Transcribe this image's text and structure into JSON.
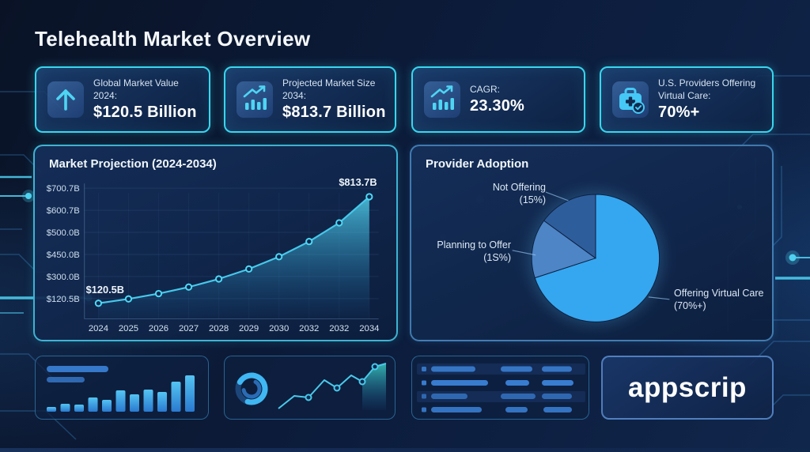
{
  "title": "Telehealth Market Overview",
  "brand": {
    "logo_text": "appscrip"
  },
  "colors": {
    "accent_cyan": "#3fd9f2",
    "accent_blue": "#35a7f0",
    "card_border": "#38d6ee",
    "pie_offering": "#35a7f0",
    "pie_planning": "#4d85c6",
    "pie_not_offering": "#2e5d9c"
  },
  "stat_cards": [
    {
      "label": "Global Market Value 2024:",
      "value": "$120.5 Billion",
      "icon": "arrow-up-icon"
    },
    {
      "label": "Projected Market Size 2034:",
      "value": "$813.7 Billion",
      "icon": "bar-chart-trend-icon"
    },
    {
      "label": "CAGR:",
      "value": "23.30%",
      "icon": "bar-chart-trend-icon"
    },
    {
      "label": "U.S. Providers Offering Virtual Care:",
      "value": "70%+",
      "icon": "medical-bag-check-icon"
    }
  ],
  "chart_data": [
    {
      "type": "area",
      "title": "Market Projection (2024-2034)",
      "x": [
        "2024",
        "2025",
        "2026",
        "2027",
        "2028",
        "2029",
        "2030",
        "2032",
        "2032",
        "2034"
      ],
      "values": [
        120.5,
        148.6,
        183.2,
        225.9,
        278.5,
        343.4,
        423.4,
        522.0,
        643.7,
        813.7
      ],
      "y_tick_labels": [
        "$700.7B",
        "$600.7B",
        "$500.0B",
        "$450.0B",
        "$300.0B",
        "$120.5B"
      ],
      "point_labels": {
        "first": "$120.5B",
        "last": "$813.7B"
      },
      "ylim": [
        120.5,
        813.7
      ],
      "grid": true,
      "legend": false
    },
    {
      "type": "pie",
      "title": "Provider Adoption",
      "slices": [
        {
          "label": "Offering Virtual Care",
          "pct_label": "(70%+)",
          "value": 70,
          "color": "#35a7f0"
        },
        {
          "label": "Planning to Offer",
          "pct_label": "(1S%)",
          "value": 15,
          "color": "#4d85c6"
        },
        {
          "label": "Not Offering",
          "pct_label": "(15%)",
          "value": 15,
          "color": "#2e5d9c"
        }
      ],
      "start_angle_deg": 0,
      "direction": "clockwise",
      "legend": false
    }
  ]
}
